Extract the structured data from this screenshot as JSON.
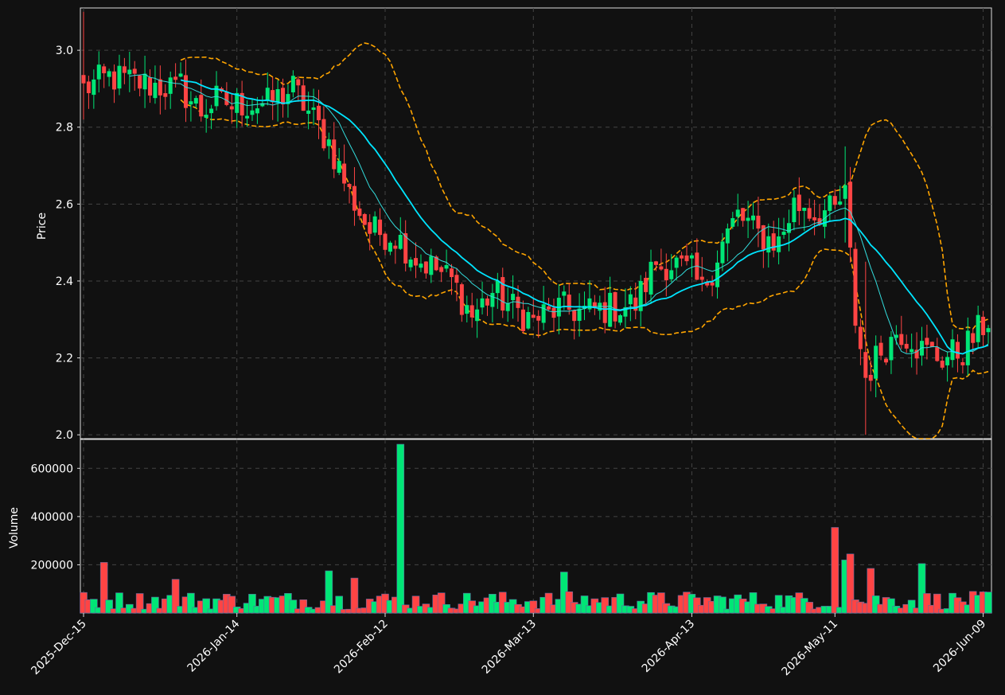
{
  "chart_data": [
    {
      "type": "candlestick",
      "panel": "price",
      "ylabel": "Price",
      "ylim": [
        1.99,
        3.11
      ],
      "yticks": [
        "2.0",
        "2.2",
        "2.4",
        "2.6",
        "2.8",
        "3.0"
      ],
      "ytick_values": [
        2.0,
        2.2,
        2.4,
        2.6,
        2.8,
        3.0
      ],
      "x_start": "2025-12-15",
      "x_end": "2026-06-10",
      "grid": true,
      "colors": {
        "up": "#00e676",
        "down": "#ff4444",
        "ma_fast": "#33dddd",
        "ma_slow": "#00e5ff",
        "bands": "#ffa500",
        "background": "#111111",
        "grid": "#444444"
      },
      "anchors": [
        [
          "2025-12-15",
          2.9
        ],
        [
          "2025-12-20",
          2.93
        ],
        [
          "2025-12-28",
          2.91
        ],
        [
          "2026-01-03",
          2.9
        ],
        [
          "2026-01-07",
          2.84
        ],
        [
          "2026-01-10",
          2.87
        ],
        [
          "2026-01-14",
          2.86
        ],
        [
          "2026-01-20",
          2.86
        ],
        [
          "2026-01-25",
          2.9
        ],
        [
          "2026-01-28",
          2.84
        ],
        [
          "2026-02-01",
          2.76
        ],
        [
          "2026-02-05",
          2.63
        ],
        [
          "2026-02-09",
          2.53
        ],
        [
          "2026-02-14",
          2.52
        ],
        [
          "2026-02-18",
          2.46
        ],
        [
          "2026-02-22",
          2.43
        ],
        [
          "2026-02-25",
          2.4
        ],
        [
          "2026-03-01",
          2.31
        ],
        [
          "2026-03-05",
          2.37
        ],
        [
          "2026-03-10",
          2.32
        ],
        [
          "2026-03-13",
          2.3
        ],
        [
          "2026-03-18",
          2.33
        ],
        [
          "2026-03-23",
          2.32
        ],
        [
          "2026-03-28",
          2.33
        ],
        [
          "2026-04-02",
          2.34
        ],
        [
          "2026-04-06",
          2.45
        ],
        [
          "2026-04-11",
          2.44
        ],
        [
          "2026-04-15",
          2.38
        ],
        [
          "2026-04-19",
          2.5
        ],
        [
          "2026-04-22",
          2.57
        ],
        [
          "2026-04-26",
          2.52
        ],
        [
          "2026-04-30",
          2.5
        ],
        [
          "2026-05-03",
          2.6
        ],
        [
          "2026-05-07",
          2.58
        ],
        [
          "2026-05-11",
          2.58
        ],
        [
          "2026-05-13",
          2.62
        ],
        [
          "2026-05-15",
          2.3
        ],
        [
          "2026-05-17",
          2.15
        ],
        [
          "2026-05-20",
          2.22
        ],
        [
          "2026-05-24",
          2.27
        ],
        [
          "2026-05-28",
          2.22
        ],
        [
          "2026-06-01",
          2.2
        ],
        [
          "2026-06-05",
          2.22
        ],
        [
          "2026-06-10",
          2.3
        ]
      ]
    },
    {
      "type": "bar",
      "panel": "volume",
      "ylabel": "Volume",
      "ylim": [
        0,
        700000
      ],
      "yticks": [
        "200000",
        "400000",
        "600000"
      ],
      "ytick_values": [
        200000,
        400000,
        600000
      ],
      "spikes": [
        [
          "2025-12-19",
          210000
        ],
        [
          "2026-01-02",
          140000
        ],
        [
          "2026-02-01",
          175000
        ],
        [
          "2026-02-06",
          145000
        ],
        [
          "2026-02-15",
          700000
        ],
        [
          "2026-03-19",
          170000
        ],
        [
          "2026-05-11",
          355000
        ],
        [
          "2026-05-14",
          245000
        ],
        [
          "2026-05-13",
          220000
        ],
        [
          "2026-05-18",
          185000
        ],
        [
          "2026-05-28",
          205000
        ]
      ]
    }
  ],
  "x_axis": {
    "tick_labels": [
      "2025-Dec-15",
      "2026-Jan-14",
      "2026-Feb-12",
      "2026-Mar-13",
      "2026-Apr-13",
      "2026-May-11",
      "2026-Jun-09"
    ],
    "tick_dates": [
      "2025-12-15",
      "2026-01-14",
      "2026-02-12",
      "2026-03-13",
      "2026-04-13",
      "2026-05-11",
      "2026-06-09"
    ]
  }
}
